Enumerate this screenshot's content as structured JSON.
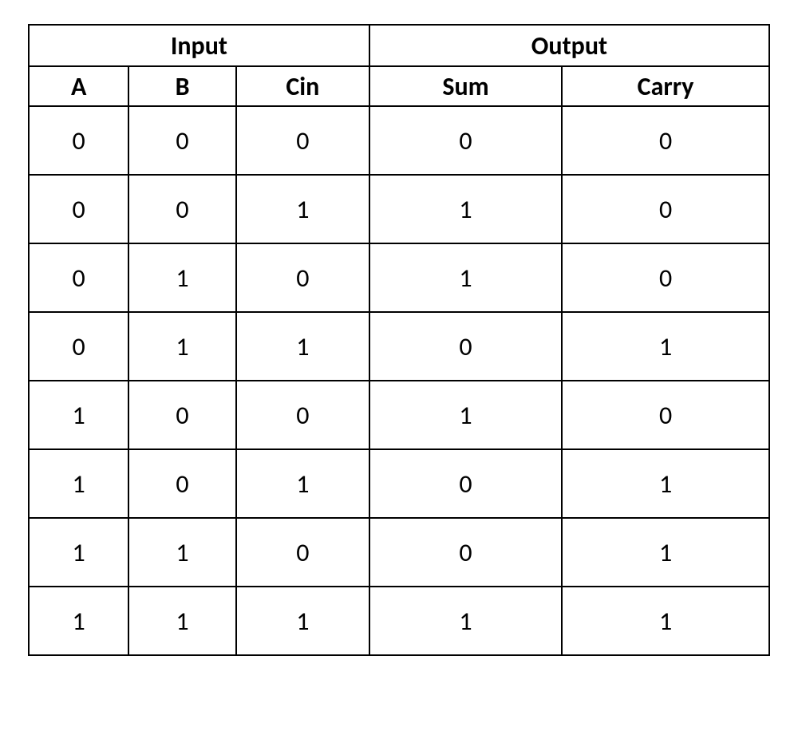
{
  "table": {
    "type": "table",
    "background_color": "#ffffff",
    "border_color": "#000000",
    "border_width": 2,
    "text_color": "#000000",
    "header_fontsize": 32,
    "cell_fontsize": 32,
    "header_fontweight": "bold",
    "group_headers": {
      "input": "Input",
      "output": "Output"
    },
    "columns": [
      {
        "key": "A",
        "label": "A",
        "group": "input",
        "width_pct": 13.5,
        "align": "center"
      },
      {
        "key": "B",
        "label": "B",
        "group": "input",
        "width_pct": 14.5,
        "align": "center"
      },
      {
        "key": "Cin",
        "label": "Cin",
        "group": "input",
        "width_pct": 18,
        "align": "center"
      },
      {
        "key": "Sum",
        "label": "Sum",
        "group": "output",
        "width_pct": 26,
        "align": "center"
      },
      {
        "key": "Carry",
        "label": "Carry",
        "group": "output",
        "width_pct": 28,
        "align": "center"
      }
    ],
    "rows": [
      [
        "0",
        "0",
        "0",
        "0",
        "0"
      ],
      [
        "0",
        "0",
        "1",
        "1",
        "0"
      ],
      [
        "0",
        "1",
        "0",
        "1",
        "0"
      ],
      [
        "0",
        "1",
        "1",
        "0",
        "1"
      ],
      [
        "1",
        "0",
        "0",
        "1",
        "0"
      ],
      [
        "1",
        "0",
        "1",
        "0",
        "1"
      ],
      [
        "1",
        "1",
        "0",
        "0",
        "1"
      ],
      [
        "1",
        "1",
        "1",
        "1",
        "1"
      ]
    ]
  }
}
